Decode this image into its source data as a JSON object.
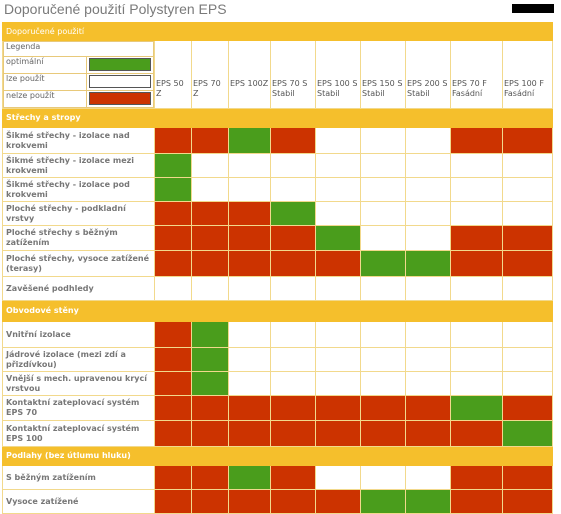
{
  "page_title": "Doporučené použití Polystyren EPS",
  "table_title": "Doporučené použití",
  "legend": {
    "title": "Legenda",
    "items": [
      {
        "label": "optimální",
        "color": "#4a9d1c"
      },
      {
        "label": "lze použít",
        "color": "#ffffff"
      },
      {
        "label": "nelze použít",
        "color": "#cc3300"
      }
    ]
  },
  "columns": [
    "EPS 50 Z",
    "EPS 70 Z",
    "EPS 100Z",
    "EPS 70 S Stabil",
    "EPS 100 S Stabil",
    "EPS 150 S Stabil",
    "EPS 200 S Stabil",
    "EPS 70 F Fasádní",
    "EPS 100 F Fasádní"
  ],
  "sections": [
    {
      "title": "Střechy a stropy",
      "rows": [
        {
          "label": "Šikmé střechy - izolace nad krokvemi",
          "cells": [
            "r",
            "r",
            "g",
            "r",
            "w",
            "w",
            "w",
            "r",
            "r"
          ]
        },
        {
          "label": "Šikmé střechy - izolace mezi krokvemi",
          "cells": [
            "g",
            "w",
            "w",
            "w",
            "w",
            "w",
            "w",
            "w",
            "w"
          ]
        },
        {
          "label": "Šikmé střechy - izolace pod krokvemi",
          "cells": [
            "g",
            "w",
            "w",
            "w",
            "w",
            "w",
            "w",
            "w",
            "w"
          ]
        },
        {
          "label": "Ploché střechy - podkladní vrstvy",
          "cells": [
            "r",
            "r",
            "r",
            "g",
            "w",
            "w",
            "w",
            "w",
            "w"
          ]
        },
        {
          "label": "Ploché střechy s běžným zatížením",
          "cells": [
            "r",
            "r",
            "r",
            "r",
            "g",
            "w",
            "w",
            "r",
            "r"
          ]
        },
        {
          "label": "Ploché střechy, vysoce zatížené (terasy)",
          "cells": [
            "r",
            "r",
            "r",
            "r",
            "r",
            "g",
            "g",
            "r",
            "r"
          ]
        },
        {
          "label": "Zavěšené podhledy",
          "cells": [
            "w",
            "w",
            "w",
            "w",
            "w",
            "w",
            "w",
            "w",
            "w"
          ]
        }
      ]
    },
    {
      "title": "Obvodové stěny",
      "rows": [
        {
          "label": "Vnitřní izolace",
          "cells": [
            "r",
            "g",
            "w",
            "w",
            "w",
            "w",
            "w",
            "w",
            "w"
          ]
        },
        {
          "label": "Jádrové izolace (mezi zdí a přizdívkou)",
          "cells": [
            "r",
            "g",
            "w",
            "w",
            "w",
            "w",
            "w",
            "w",
            "w"
          ]
        },
        {
          "label": "Vnější s mech. upravenou krycí vrstvou",
          "cells": [
            "r",
            "g",
            "w",
            "w",
            "w",
            "w",
            "w",
            "w",
            "w"
          ]
        },
        {
          "label": "Kontaktní zateplovací systém EPS 70",
          "cells": [
            "r",
            "r",
            "r",
            "r",
            "r",
            "r",
            "r",
            "g",
            "r"
          ]
        },
        {
          "label": "Kontaktní zateplovací systém EPS 100",
          "cells": [
            "r",
            "r",
            "r",
            "r",
            "r",
            "r",
            "r",
            "r",
            "g"
          ]
        }
      ]
    },
    {
      "title": "Podlahy (bez útlumu hluku)",
      "rows": [
        {
          "label": "S běžným zatížením",
          "cells": [
            "r",
            "r",
            "g",
            "r",
            "w",
            "w",
            "w",
            "r",
            "r"
          ]
        },
        {
          "label": "Vysoce zatížené",
          "cells": [
            "r",
            "r",
            "r",
            "r",
            "r",
            "g",
            "g",
            "r",
            "r"
          ]
        }
      ]
    }
  ]
}
